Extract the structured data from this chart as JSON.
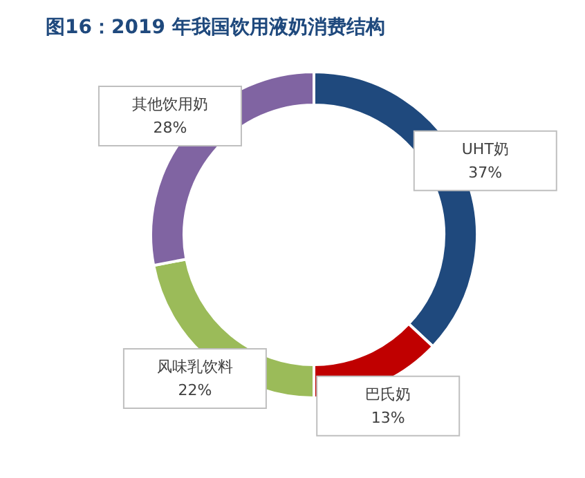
{
  "chart_data": {
    "type": "donut",
    "title": "图16：2019 年我国饮用液奶消费结构",
    "categories": [
      "UHT奶",
      "巴氏奶",
      "风味乳饮料",
      "其他饮用奶"
    ],
    "values": [
      37,
      13,
      22,
      28
    ],
    "value_labels": [
      "37%",
      "13%",
      "22%",
      "28%"
    ],
    "colors": [
      "#1f497d",
      "#c00000",
      "#9bbb59",
      "#8064a2"
    ],
    "legend": false
  }
}
